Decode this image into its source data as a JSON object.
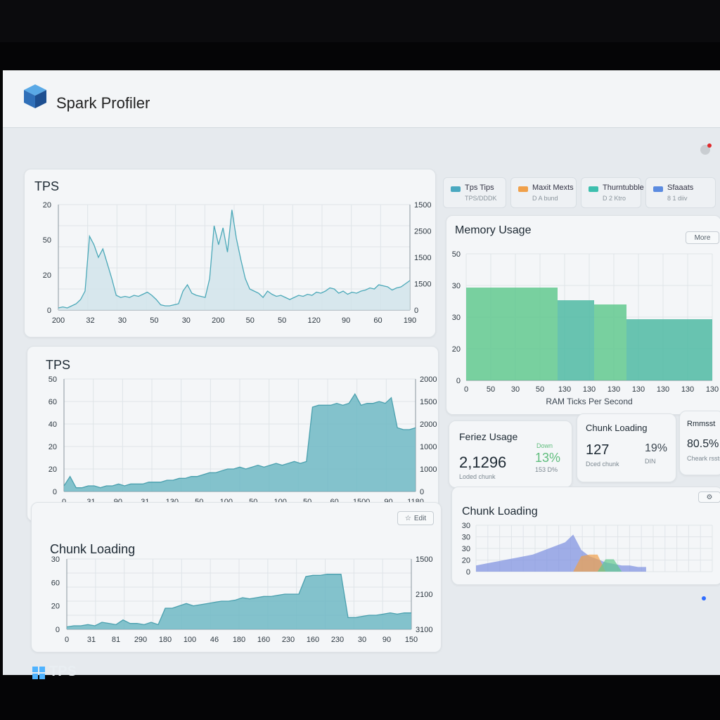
{
  "app": {
    "title": "Spark Profiler"
  },
  "icons": {
    "logo": "cube-logo-icon",
    "record": "record-dot-icon",
    "taskbar": "windows-icon"
  },
  "colors": {
    "teal": "#7fc3cb",
    "green": "#62c98f",
    "blue": "#7a8fe0",
    "orange": "#f0a04a",
    "accent_pct": "#5fbd7d"
  },
  "legend": [
    {
      "label": "Tps Tips",
      "sub": "TPS/DDDK",
      "color": "#4aa8c0"
    },
    {
      "label": "Maxit Mexts",
      "sub": "D A bund",
      "color": "#f0a04a"
    },
    {
      "label": "Thurntubble",
      "sub": "D 2 Ktro",
      "color": "#3dbfae"
    },
    {
      "label": "Sfaaats",
      "sub": "8 1 diiv",
      "color": "#5b8be0"
    }
  ],
  "tps_chart_1": {
    "title": "TPS",
    "y_left": [
      "20",
      "50",
      "20",
      "0"
    ],
    "y_right": [
      "1500",
      "2500",
      "1500",
      "1500",
      "0"
    ],
    "x_labels": [
      "200",
      "32",
      "30",
      "50",
      "30",
      "200",
      "50",
      "50",
      "120",
      "90",
      "60",
      "190"
    ]
  },
  "tps_chart_2": {
    "title": "TPS",
    "y_left": [
      "50",
      "60",
      "40",
      "20",
      "20",
      "0"
    ],
    "y_right": [
      "2000",
      "1500",
      "2000",
      "1000",
      "1000",
      "0"
    ],
    "x_labels": [
      "0",
      "31",
      "90",
      "31",
      "130",
      "50",
      "100",
      "50",
      "100",
      "50",
      "60",
      "1500",
      "90",
      "1180"
    ],
    "legend_label": "Ticks Per Second"
  },
  "chunk_chart_left": {
    "title": "Chunk Loading",
    "button": "Edit",
    "y_left": [
      "30",
      "60",
      "20",
      "0"
    ],
    "y_right": [
      "1500",
      "2100",
      "3100"
    ],
    "x_labels": [
      "0",
      "31",
      "81",
      "290",
      "180",
      "100",
      "46",
      "180",
      "160",
      "230",
      "160",
      "230",
      "30",
      "90",
      "150"
    ]
  },
  "memory_chart": {
    "title": "Memory Usage",
    "y_labels": [
      "50",
      "30",
      "30",
      "20",
      "0"
    ],
    "x_labels": [
      "0",
      "50",
      "30",
      "50",
      "130",
      "130",
      "130",
      "130",
      "130",
      "130",
      "130"
    ],
    "x_title": "RAM Ticks Per Second",
    "button": "More"
  },
  "stats": [
    {
      "title": "Feriez Usage",
      "value": "2,1296",
      "sub": "Loded chunk",
      "pct": "13%",
      "pct_label": "Down",
      "pct_sub": "153 D%"
    },
    {
      "title": "Chunk Loading",
      "value": "127",
      "sub": "Dced chunk",
      "pct": "19%",
      "pct_sub": "DIN"
    },
    {
      "title": "Rmmsst",
      "value": "80.5%",
      "sub": "Cheark rssts"
    }
  ],
  "chunk_chart_right": {
    "title": "Chunk Loading",
    "y_labels": [
      "30",
      "30",
      "30",
      "20",
      "0"
    ]
  },
  "taskbar": {
    "label": "TPS"
  },
  "chart_data": [
    {
      "type": "area",
      "title": "TPS",
      "x": [
        0,
        1,
        2,
        3,
        4,
        5,
        6,
        7,
        8,
        9,
        10,
        11,
        12,
        13,
        14,
        15,
        16,
        17,
        18,
        19,
        20,
        21,
        22,
        23,
        24,
        25,
        26,
        27,
        28,
        29,
        30,
        31,
        32,
        33,
        34,
        35,
        36,
        37,
        38,
        39,
        40,
        41,
        42,
        43,
        44,
        45,
        46,
        47,
        48,
        49,
        50,
        51,
        52,
        53,
        54,
        55,
        56,
        57,
        58,
        59,
        60,
        61,
        62,
        63,
        64,
        65,
        66,
        67,
        68,
        69,
        70,
        71,
        72,
        73,
        74,
        75,
        76,
        77,
        78,
        79
      ],
      "values": [
        2,
        3,
        2,
        4,
        6,
        10,
        18,
        70,
        62,
        50,
        58,
        44,
        30,
        14,
        12,
        13,
        12,
        14,
        13,
        15,
        17,
        14,
        10,
        5,
        4,
        4,
        5,
        6,
        18,
        24,
        16,
        14,
        13,
        12,
        30,
        80,
        62,
        78,
        55,
        95,
        68,
        48,
        30,
        20,
        18,
        16,
        12,
        18,
        15,
        13,
        14,
        12,
        10,
        12,
        14,
        13,
        15,
        14,
        17,
        16,
        18,
        21,
        20,
        16,
        18,
        15,
        17,
        16,
        18,
        19,
        21,
        20,
        24,
        23,
        22,
        19,
        21,
        22,
        25,
        28
      ],
      "ylim": [
        0,
        100
      ]
    },
    {
      "type": "area",
      "title": "TPS",
      "values": [
        3,
        8,
        2,
        2,
        3,
        3,
        2,
        3,
        3,
        4,
        3,
        4,
        4,
        4,
        5,
        5,
        5,
        6,
        6,
        7,
        7,
        8,
        8,
        9,
        10,
        10,
        11,
        12,
        12,
        13,
        12,
        13,
        14,
        13,
        14,
        15,
        14,
        15,
        16,
        15,
        16,
        45,
        46,
        46,
        46,
        47,
        46,
        47,
        52,
        46,
        47,
        47,
        48,
        47,
        50,
        34,
        33,
        33,
        34
      ],
      "ylim": [
        0,
        60
      ],
      "series_label": "Ticks Per Second"
    },
    {
      "type": "area",
      "title": "Chunk Loading",
      "values": [
        2,
        3,
        3,
        4,
        3,
        6,
        5,
        4,
        8,
        5,
        5,
        4,
        6,
        4,
        18,
        18,
        20,
        22,
        20,
        21,
        22,
        23,
        24,
        24,
        25,
        27,
        26,
        27,
        28,
        28,
        29,
        30,
        30,
        30,
        45,
        46,
        46,
        47,
        47,
        47,
        10,
        10,
        11,
        12,
        12,
        13,
        14,
        13,
        14,
        14
      ],
      "ylim": [
        0,
        60
      ]
    },
    {
      "type": "bar",
      "title": "Memory Usage",
      "bars": [
        {
          "value": 44,
          "color": "#62c98f"
        },
        {
          "value": 38,
          "color": "#4fbaa3"
        },
        {
          "value": 36,
          "color": "#62c98f"
        },
        {
          "value": 29,
          "color": "#4fbaa3"
        }
      ],
      "ylim": [
        0,
        60
      ]
    },
    {
      "type": "area",
      "title": "Chunk Loading",
      "series": [
        {
          "name": "",
          "values": [
            4,
            5,
            6,
            7,
            8,
            9,
            10,
            11,
            13,
            15,
            17,
            19,
            24,
            14,
            10,
            8,
            6,
            5,
            4,
            4,
            3,
            3
          ],
          "color": "#7a8fe0"
        },
        {
          "name": "",
          "values": [
            0,
            0,
            0,
            0,
            0,
            0,
            0,
            0,
            0,
            0,
            0,
            0,
            0,
            10,
            11,
            11,
            0,
            0,
            0,
            0,
            0,
            0
          ],
          "color": "#f0a04a"
        },
        {
          "name": "",
          "values": [
            0,
            0,
            0,
            0,
            0,
            0,
            0,
            0,
            0,
            0,
            0,
            0,
            0,
            0,
            0,
            0,
            8,
            8,
            0,
            0,
            0,
            0
          ],
          "color": "#62c98f"
        }
      ],
      "ylim": [
        0,
        30
      ]
    }
  ]
}
